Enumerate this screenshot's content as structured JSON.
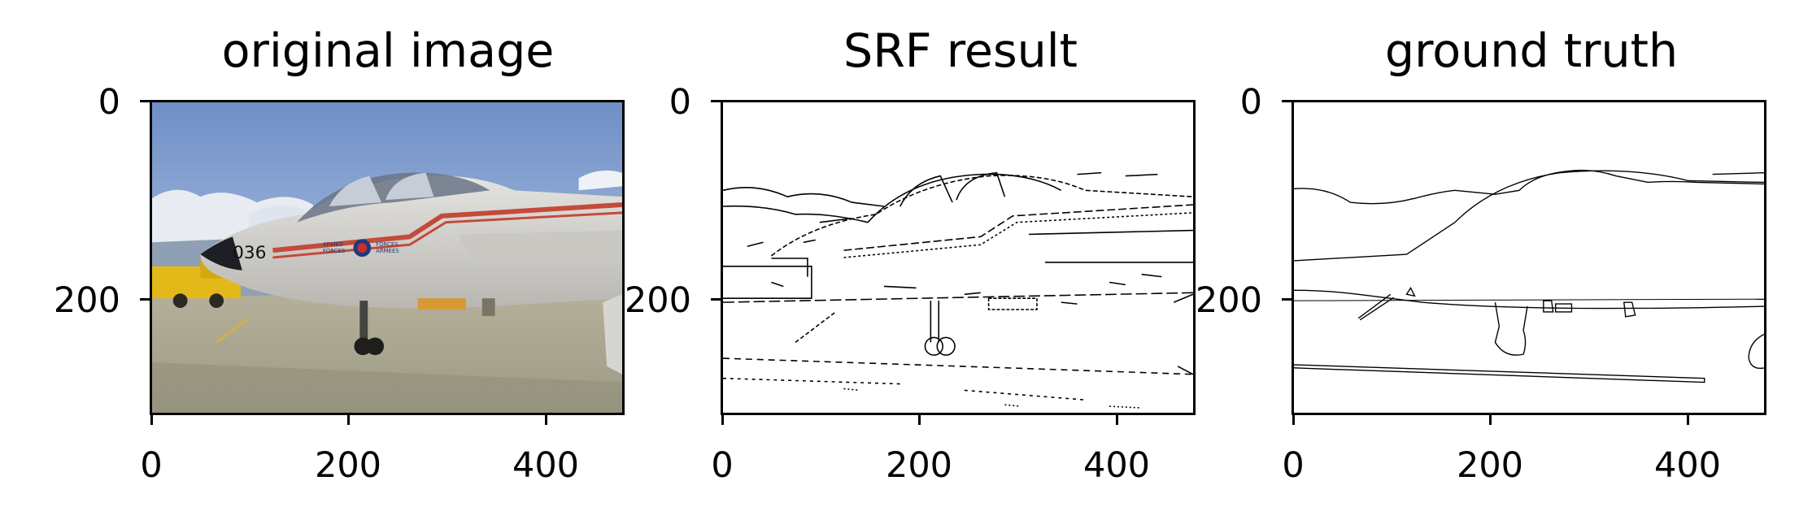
{
  "panels": [
    {
      "title": "original image",
      "x_ticks": [
        "0",
        "200",
        "400"
      ],
      "y_ticks": [
        "0",
        "200"
      ]
    },
    {
      "title": "SRF result",
      "x_ticks": [
        "0",
        "200",
        "400"
      ],
      "y_ticks": [
        "0",
        "200"
      ]
    },
    {
      "title": "ground truth",
      "x_ticks": [
        "0",
        "200",
        "400"
      ],
      "y_ticks": [
        "0",
        "200"
      ]
    }
  ],
  "image_content": {
    "photo_subject": "military jet aircraft on tarmac",
    "aircraft_markings": [
      "036",
      "ARMED FORCES",
      "FORCES ARMEES"
    ],
    "colors": {
      "sky": "#7f9fcf",
      "tarmac": "#a9a58f",
      "fuselage": "#d7d5d0",
      "stripe": "#c44a3a",
      "fuel_truck": "#e3b91a"
    }
  }
}
